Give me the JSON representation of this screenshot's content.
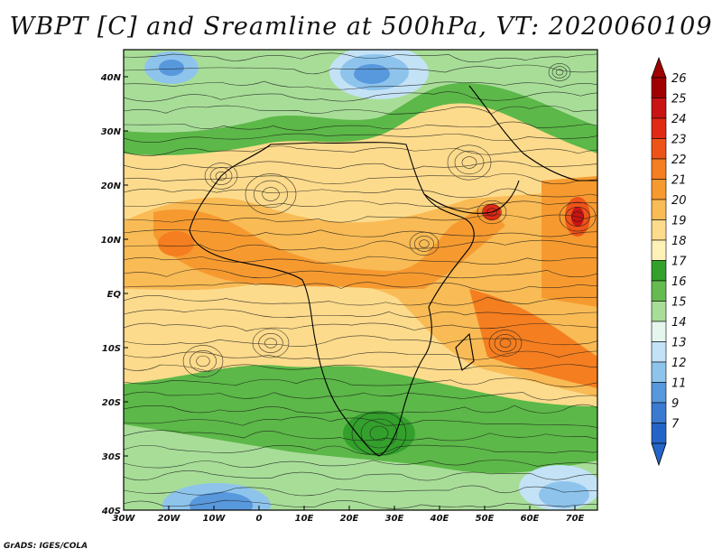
{
  "title": "WBPT [C] and Sreamline at 500hPa, VT: 2020060109",
  "credit": "GrADS: IGES/COLA",
  "map": {
    "lon_ticks": [
      "30W",
      "20W",
      "10W",
      "0",
      "10E",
      "20E",
      "30E",
      "40E",
      "50E",
      "60E",
      "70E"
    ],
    "lat_ticks": [
      "40N",
      "30N",
      "20N",
      "10N",
      "EQ",
      "10S",
      "20S",
      "30S",
      "40S"
    ],
    "lon_range": [
      -30,
      75
    ],
    "lat_range": [
      -40,
      45
    ]
  },
  "colorbar": {
    "levels": [
      "26",
      "25",
      "24",
      "23",
      "22",
      "21",
      "20",
      "19",
      "18",
      "17",
      "16",
      "15",
      "14",
      "13",
      "12",
      "11",
      "9",
      "7"
    ],
    "colors": [
      "#a00000",
      "#c81414",
      "#e02a14",
      "#ee5418",
      "#f47e20",
      "#f69a30",
      "#f9bb55",
      "#fddb8c",
      "#fff2b8",
      "#33a02c",
      "#66bb50",
      "#a8dd98",
      "#e4f6ee",
      "#c4e2f6",
      "#8ec4ec",
      "#5898dc",
      "#3a7ad0",
      "#2464c8"
    ]
  }
}
